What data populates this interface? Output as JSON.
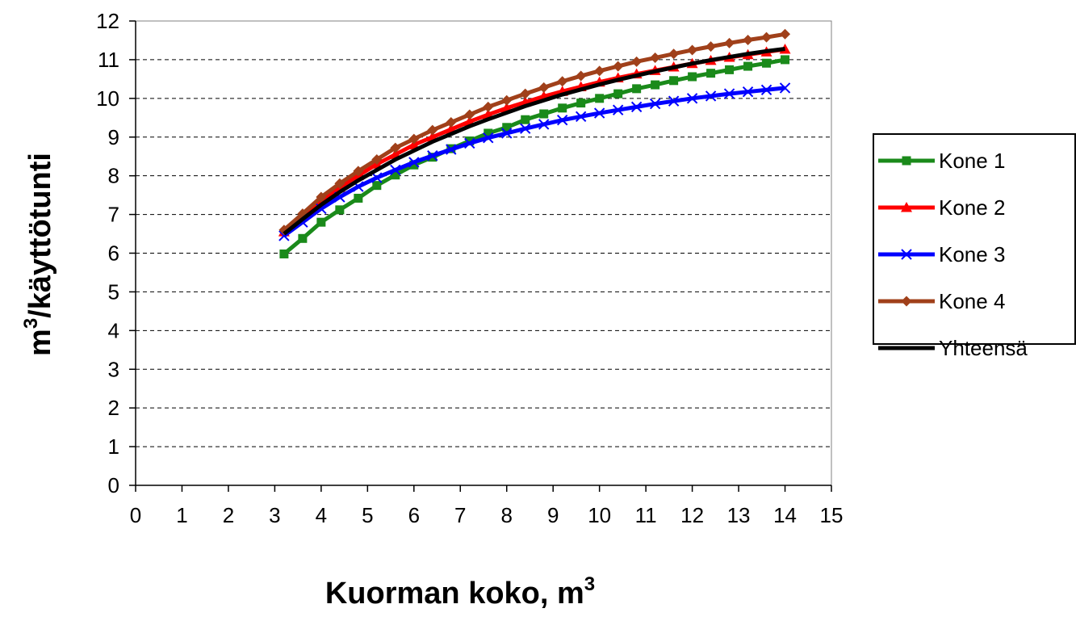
{
  "chart_data": {
    "type": "line",
    "xlabel": "Kuorman koko, m",
    "xlabel_sup": "3",
    "ylabel_pre": "m",
    "ylabel_sup": "3",
    "ylabel_post": "/käyttötunti",
    "xlim": [
      0,
      15
    ],
    "ylim": [
      0,
      12
    ],
    "xticks": [
      "0",
      "1",
      "2",
      "3",
      "4",
      "5",
      "6",
      "7",
      "8",
      "9",
      "10",
      "11",
      "12",
      "13",
      "14",
      "15"
    ],
    "yticks": [
      "0",
      "1",
      "2",
      "3",
      "4",
      "5",
      "6",
      "7",
      "8",
      "9",
      "10",
      "11",
      "12"
    ],
    "grid": "horizontal-dashed",
    "legend_position": "right",
    "x": [
      3.2,
      3.6,
      4.0,
      4.4,
      4.8,
      5.2,
      5.6,
      6.0,
      6.4,
      6.8,
      7.2,
      7.6,
      8.0,
      8.4,
      8.8,
      9.2,
      9.6,
      10.0,
      10.4,
      10.8,
      11.2,
      11.6,
      12.0,
      12.4,
      12.8,
      13.2,
      13.6,
      14.0
    ],
    "series": [
      {
        "name": "Kone 1",
        "color": "#1a8a1a",
        "marker": "square",
        "values": [
          5.98,
          6.38,
          6.8,
          7.12,
          7.42,
          7.75,
          8.02,
          8.28,
          8.48,
          8.7,
          8.9,
          9.1,
          9.25,
          9.45,
          9.6,
          9.75,
          9.88,
          10.0,
          10.12,
          10.25,
          10.35,
          10.46,
          10.56,
          10.65,
          10.74,
          10.83,
          10.91,
          11.0
        ]
      },
      {
        "name": "Kone 2",
        "color": "#ff0000",
        "marker": "triangle",
        "values": [
          6.55,
          6.95,
          7.35,
          7.7,
          8.0,
          8.3,
          8.55,
          8.8,
          9.0,
          9.2,
          9.4,
          9.58,
          9.75,
          9.9,
          10.05,
          10.18,
          10.3,
          10.42,
          10.53,
          10.63,
          10.72,
          10.81,
          10.9,
          10.98,
          11.06,
          11.13,
          11.2,
          11.27
        ]
      },
      {
        "name": "Kone 3",
        "color": "#0000ff",
        "marker": "x",
        "values": [
          6.45,
          6.8,
          7.15,
          7.45,
          7.72,
          7.95,
          8.15,
          8.35,
          8.52,
          8.68,
          8.84,
          8.98,
          9.1,
          9.22,
          9.33,
          9.44,
          9.53,
          9.62,
          9.7,
          9.78,
          9.86,
          9.93,
          10.0,
          10.06,
          10.12,
          10.17,
          10.22,
          10.27
        ]
      },
      {
        "name": "Kone 4",
        "color": "#a0401a",
        "marker": "diamond",
        "values": [
          6.6,
          7.02,
          7.45,
          7.8,
          8.12,
          8.42,
          8.72,
          8.95,
          9.18,
          9.38,
          9.58,
          9.78,
          9.95,
          10.12,
          10.28,
          10.44,
          10.58,
          10.71,
          10.83,
          10.95,
          11.05,
          11.15,
          11.25,
          11.34,
          11.43,
          11.51,
          11.58,
          11.66
        ]
      },
      {
        "name": "Yhteensä",
        "color": "#000000",
        "marker": "none",
        "values": [
          6.5,
          6.88,
          7.25,
          7.58,
          7.88,
          8.15,
          8.42,
          8.65,
          8.88,
          9.08,
          9.28,
          9.46,
          9.63,
          9.8,
          9.95,
          10.1,
          10.23,
          10.36,
          10.48,
          10.59,
          10.7,
          10.8,
          10.9,
          10.99,
          11.07,
          11.15,
          11.22,
          11.28
        ]
      }
    ]
  }
}
